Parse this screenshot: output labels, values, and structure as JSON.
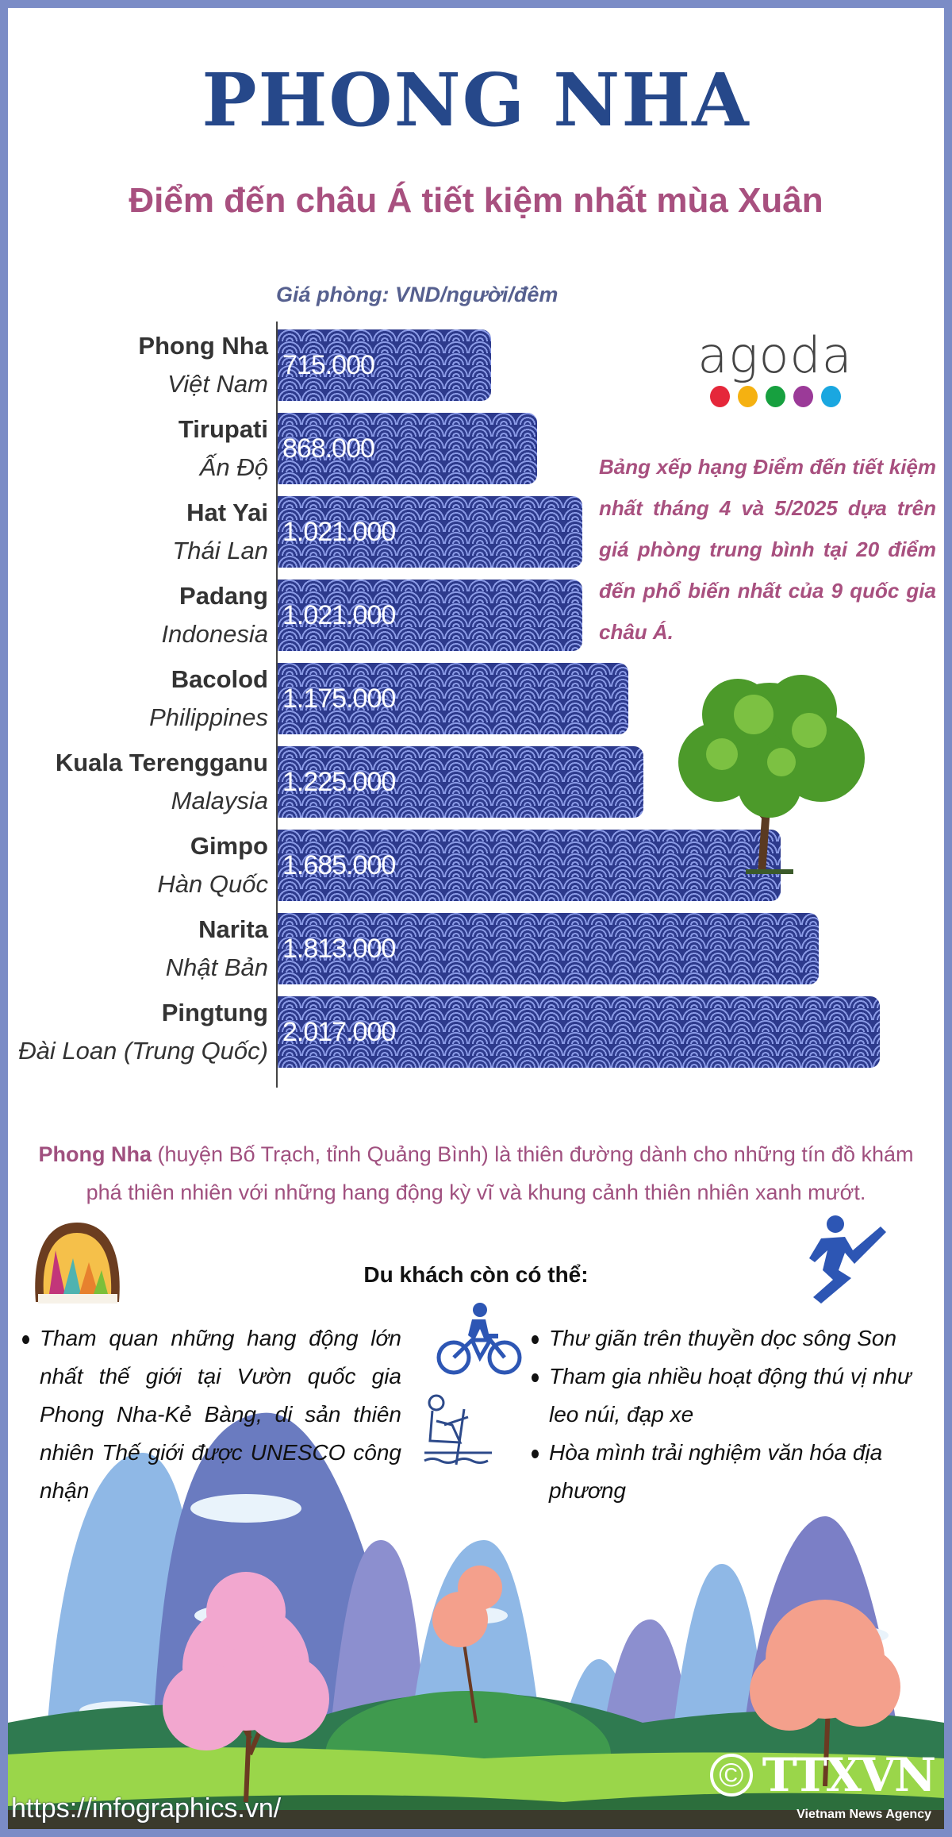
{
  "header": {
    "title": "PHONG NHA",
    "subtitle": "Điểm đến châu Á tiết kiệm nhất mùa Xuân"
  },
  "chart_data": {
    "type": "bar",
    "orientation": "horizontal",
    "ylabel": "Giá phòng: VND/người/đêm",
    "categories": [
      {
        "name": "Phong Nha",
        "country": "Việt Nam"
      },
      {
        "name": "Tirupati",
        "country": "Ấn Độ"
      },
      {
        "name": "Hat Yai",
        "country": "Thái Lan"
      },
      {
        "name": "Padang",
        "country": "Indonesia"
      },
      {
        "name": "Bacolod",
        "country": "Philippines"
      },
      {
        "name": "Kuala Terengganu",
        "country": "Malaysia"
      },
      {
        "name": "Gimpo",
        "country": "Hàn Quốc"
      },
      {
        "name": "Narita",
        "country": "Nhật Bản"
      },
      {
        "name": "Pingtung",
        "country": "Đài Loan (Trung Quốc)"
      }
    ],
    "values": [
      715000,
      868000,
      1021000,
      1021000,
      1175000,
      1225000,
      1685000,
      1813000,
      2017000
    ],
    "value_labels": [
      "715.000",
      "868.000",
      "1.021.000",
      "1.021.000",
      "1.175.000",
      "1.225.000",
      "1.685.000",
      "1.813.000",
      "2.017.000"
    ],
    "bar_color": "#2d3a8c",
    "grid": false
  },
  "logo": {
    "text": "agoda",
    "dot_colors": [
      "#e5273a",
      "#f5b111",
      "#17a03f",
      "#9b3a98",
      "#1aa7e0"
    ]
  },
  "description": "Bảng xếp hạng Điểm đến tiết kiệm nhất tháng 4 và 5/2025 dựa trên giá phòng trung bình tại 20 điểm đến phổ biến nhất của 9 quốc gia châu Á.",
  "intro": {
    "bold": "Phong Nha",
    "text": " (huyện Bố Trạch, tỉnh Quảng Bình) là thiên đường dành cho những tín đồ khám phá thiên nhiên với những hang động kỳ vĩ và khung cảnh thiên nhiên xanh mướt."
  },
  "activities": {
    "heading": "Du khách còn có thể:",
    "left": [
      "Tham quan những hang động lớn nhất thế giới tại Vườn quốc gia Phong Nha-Kẻ Bàng, di sản thiên nhiên Thế giới được UNESCO công nhận"
    ],
    "right": [
      "Thư giãn trên thuyền dọc sông Son",
      "Tham gia nhiều hoạt động thú vị như leo núi, đạp xe",
      "Hòa mình trải nghiệm văn hóa địa phương"
    ]
  },
  "footer": {
    "url": "https://infographics.vn/",
    "copyright": "©",
    "agency": "TTXVN",
    "agency_sub": "Vietnam News Agency"
  },
  "colors": {
    "title": "#26488a",
    "accent": "#a8507f",
    "frame": "#7b8cc6"
  }
}
